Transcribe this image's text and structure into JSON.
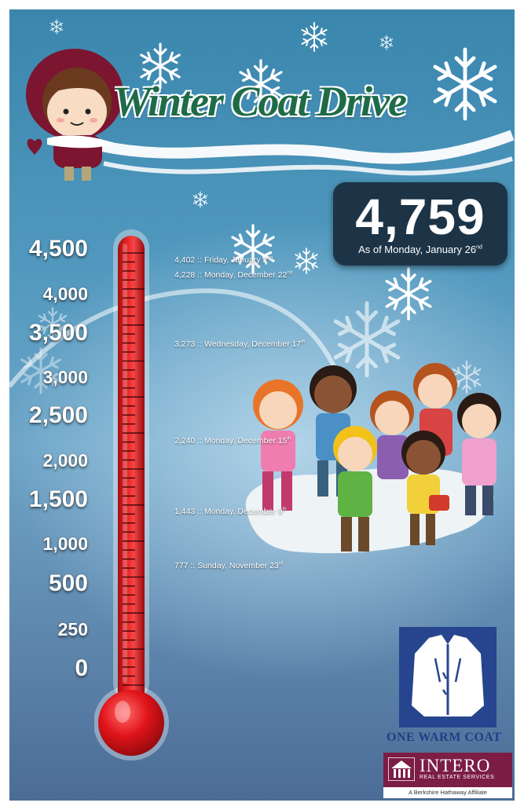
{
  "title": "Winter Coat Drive",
  "total": {
    "value": "4,759",
    "caption_prefix": "As of Monday, January 26",
    "caption_suffix": "nd"
  },
  "scale": [
    "4,500",
    "4,000",
    "3,500",
    "3,000",
    "2,500",
    "2,000",
    "1,500",
    "1,000",
    "500",
    "250",
    "0"
  ],
  "thermometer": {
    "fill_fraction": 1.0
  },
  "milestones": [
    {
      "text": "4,402 :: Friday, January 2",
      "suffix": "nd"
    },
    {
      "text": "4,228 :: Monday, December 22",
      "suffix": "nd"
    },
    {
      "text": "3,273 :: Wednesday, December 17",
      "suffix": "th"
    },
    {
      "text": "2,240 :: Monday, December 15",
      "suffix": "th"
    },
    {
      "text": "1,443 :: Monday, December 9",
      "suffix": "th"
    },
    {
      "text": "777 :: Sunday, November 23",
      "suffix": "rd"
    }
  ],
  "sponsors": {
    "one_warm_coat": "ONE WARM COAT",
    "intero_name": "INTERO",
    "intero_sub": "REAL ESTATE SERVICES",
    "intero_affiliate": "A Berkshire Hathaway Affiliate"
  },
  "colors": {
    "mercury": "#d8141b",
    "title_green": "#1f6b47",
    "total_box": "#1d3447",
    "intero": "#7c1d45",
    "owc_blue": "#27448f"
  },
  "icons": [
    "snowflake-icon",
    "girl-in-hood-illustration",
    "children-group-illustration",
    "coat-logo-icon",
    "intero-house-icon"
  ]
}
